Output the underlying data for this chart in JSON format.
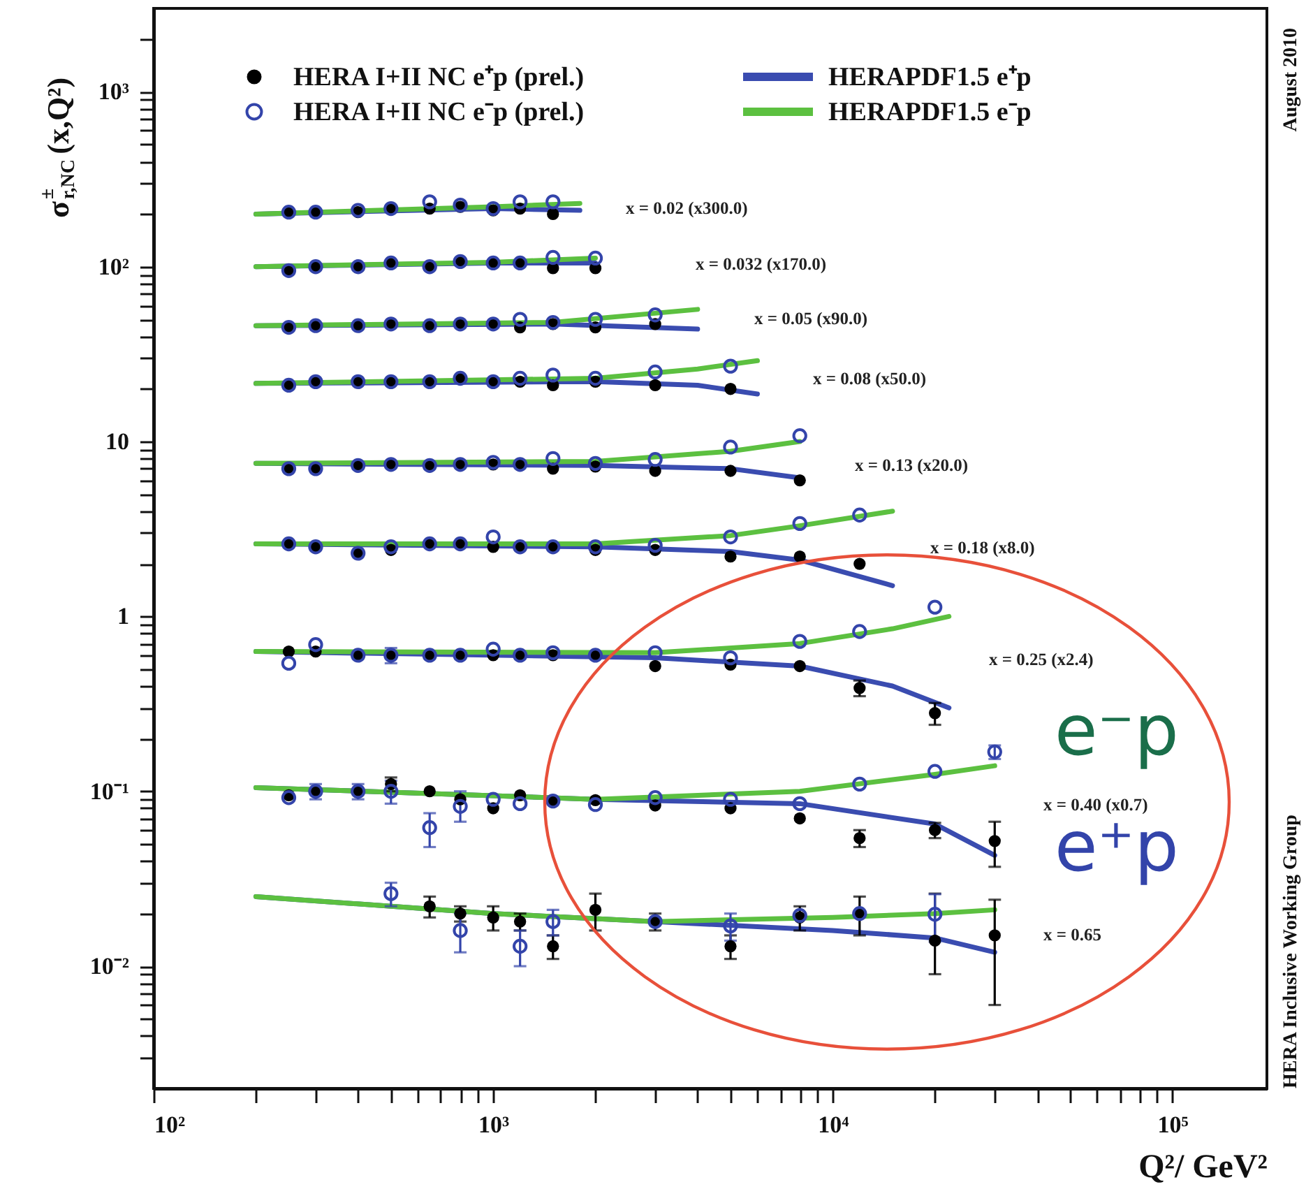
{
  "chart_data": {
    "type": "scatter",
    "xlabel": "Q²/ GeV²",
    "ylabel": "σ$^{±}$$_{r,NC}$(x,Q²)",
    "log": "xy",
    "grid": false,
    "legend": "top left",
    "xlim": [
      100,
      190000
    ],
    "ylim": [
      0.002,
      3000
    ],
    "xticks": [
      {
        "value": 100,
        "label": "10²"
      },
      {
        "value": 1000,
        "label": "10³"
      },
      {
        "value": 10000,
        "label": "10⁴"
      },
      {
        "value": 100000,
        "label": "10⁵"
      },
      {
        "value": 200,
        "label": null
      },
      {
        "value": 300,
        "label": null
      },
      {
        "value": 400,
        "label": null
      },
      {
        "value": 500,
        "label": null
      },
      {
        "value": 600,
        "label": null
      },
      {
        "value": 700,
        "label": null
      },
      {
        "value": 800,
        "label": null
      },
      {
        "value": 900,
        "label": null
      },
      {
        "value": 2000,
        "label": null
      },
      {
        "value": 3000,
        "label": null
      },
      {
        "value": 4000,
        "label": null
      },
      {
        "value": 5000,
        "label": null
      },
      {
        "value": 6000,
        "label": null
      },
      {
        "value": 7000,
        "label": null
      },
      {
        "value": 8000,
        "label": null
      },
      {
        "value": 9000,
        "label": null
      },
      {
        "value": 20000,
        "label": null
      },
      {
        "value": 30000,
        "label": null
      },
      {
        "value": 40000,
        "label": null
      },
      {
        "value": 50000,
        "label": null
      },
      {
        "value": 60000,
        "label": null
      },
      {
        "value": 70000,
        "label": null
      },
      {
        "value": 80000,
        "label": null
      },
      {
        "value": 90000,
        "label": null
      }
    ],
    "yticks": [
      {
        "value": 0.01,
        "label": "10⁻²"
      },
      {
        "value": 0.1,
        "label": "10⁻¹"
      },
      1,
      10,
      {
        "value": 100,
        "label": "10²"
      },
      {
        "value": 1000,
        "label": "10³"
      },
      {
        "value": 0.003,
        "label": null
      },
      {
        "value": 0.004,
        "label": null
      },
      {
        "value": 0.005,
        "label": null
      },
      {
        "value": 0.006,
        "label": null
      },
      {
        "value": 0.007,
        "label": null
      },
      {
        "value": 0.008,
        "label": null
      },
      {
        "value": 0.009,
        "label": null
      },
      {
        "value": 0.02,
        "label": null
      },
      {
        "value": 0.03,
        "label": null
      },
      {
        "value": 0.04,
        "label": null
      },
      {
        "value": 0.05,
        "label": null
      },
      {
        "value": 0.06,
        "label": null
      },
      {
        "value": 0.07,
        "label": null
      },
      {
        "value": 0.08,
        "label": null
      },
      {
        "value": 0.09,
        "label": null
      },
      {
        "value": 0.2,
        "label": null
      },
      {
        "value": 0.3,
        "label": null
      },
      {
        "value": 0.4,
        "label": null
      },
      {
        "value": 0.5,
        "label": null
      },
      {
        "value": 0.6,
        "label": null
      },
      {
        "value": 0.7,
        "label": null
      },
      {
        "value": 0.8,
        "label": null
      },
      {
        "value": 0.9,
        "label": null
      },
      {
        "value": 2,
        "label": null
      },
      {
        "value": 3,
        "label": null
      },
      {
        "value": 4,
        "label": null
      },
      {
        "value": 5,
        "label": null
      },
      {
        "value": 6,
        "label": null
      },
      {
        "value": 7,
        "label": null
      },
      {
        "value": 8,
        "label": null
      },
      {
        "value": 9,
        "label": null
      },
      {
        "value": 20,
        "label": null
      },
      {
        "value": 30,
        "label": null
      },
      {
        "value": 40,
        "label": null
      },
      {
        "value": 50,
        "label": null
      },
      {
        "value": 60,
        "label": null
      },
      {
        "value": 70,
        "label": null
      },
      {
        "value": 80,
        "label": null
      },
      {
        "value": 90,
        "label": null
      },
      {
        "value": 200,
        "label": null
      },
      {
        "value": 300,
        "label": null
      },
      {
        "value": 400,
        "label": null
      },
      {
        "value": 500,
        "label": null
      },
      {
        "value": 600,
        "label": null
      },
      {
        "value": 700,
        "label": null
      },
      {
        "value": 800,
        "label": null
      },
      {
        "value": 900,
        "label": null
      },
      {
        "value": 2000,
        "label": null
      }
    ],
    "series": [
      {
        "name": "HERAPDF1.5  e⁺p",
        "type": "line",
        "marker": "none",
        "color": "#3a4cb0",
        "x": [
          200,
          1000,
          1800
        ],
        "values": [
          200,
          215,
          210
        ]
      },
      {
        "type": "line",
        "marker": "none",
        "color": "#3a4cb0",
        "x": [
          200,
          1000,
          2000
        ],
        "values": [
          100,
          105,
          105
        ]
      },
      {
        "type": "line",
        "marker": "none",
        "color": "#3a4cb0",
        "x": [
          200,
          1500,
          4000
        ],
        "values": [
          46,
          47,
          44
        ]
      },
      {
        "type": "line",
        "marker": "none",
        "color": "#3a4cb0",
        "x": [
          200,
          2000,
          4000,
          6000
        ],
        "values": [
          21.5,
          22,
          21,
          18.7
        ]
      },
      {
        "type": "line",
        "marker": "none",
        "color": "#3a4cb0",
        "x": [
          200,
          2000,
          5000,
          8000
        ],
        "values": [
          7.5,
          7.3,
          7.0,
          6.2
        ]
      },
      {
        "type": "line",
        "marker": "none",
        "color": "#3a4cb0",
        "x": [
          200,
          2000,
          5000,
          8000,
          15000
        ],
        "values": [
          2.6,
          2.5,
          2.35,
          2.1,
          1.5
        ]
      },
      {
        "type": "line",
        "marker": "none",
        "color": "#3a4cb0",
        "x": [
          200,
          3000,
          8000,
          15000,
          22000
        ],
        "values": [
          0.63,
          0.58,
          0.52,
          0.4,
          0.3
        ]
      },
      {
        "type": "line",
        "marker": "none",
        "color": "#3a4cb0",
        "x": [
          200,
          2000,
          8000,
          20000,
          30000
        ],
        "values": [
          0.105,
          0.09,
          0.085,
          0.065,
          0.043
        ]
      },
      {
        "type": "line",
        "marker": "none",
        "color": "#3a4cb0",
        "x": [
          200,
          1000,
          3000,
          10000,
          20000,
          30000
        ],
        "values": [
          0.025,
          0.02,
          0.018,
          0.016,
          0.0145,
          0.012
        ]
      },
      {
        "name": "HERAPDF1.5  e⁻p",
        "type": "line",
        "marker": "none",
        "color": "#5cc040",
        "x": [
          200,
          1000,
          1800
        ],
        "values": [
          200,
          220,
          230
        ]
      },
      {
        "type": "line",
        "marker": "none",
        "color": "#5cc040",
        "x": [
          200,
          1000,
          2000
        ],
        "values": [
          100,
          106,
          112
        ]
      },
      {
        "type": "line",
        "marker": "none",
        "color": "#5cc040",
        "x": [
          200,
          1500,
          4000
        ],
        "values": [
          46,
          48,
          57
        ]
      },
      {
        "type": "line",
        "marker": "none",
        "color": "#5cc040",
        "x": [
          200,
          2000,
          4000,
          6000
        ],
        "values": [
          21.5,
          23,
          26,
          29
        ]
      },
      {
        "type": "line",
        "marker": "none",
        "color": "#5cc040",
        "x": [
          200,
          2000,
          5000,
          8000
        ],
        "values": [
          7.5,
          7.7,
          8.8,
          10
        ]
      },
      {
        "type": "line",
        "marker": "none",
        "color": "#5cc040",
        "x": [
          200,
          2000,
          5000,
          8000,
          15000
        ],
        "values": [
          2.6,
          2.6,
          2.9,
          3.3,
          4.0
        ]
      },
      {
        "type": "line",
        "marker": "none",
        "color": "#5cc040",
        "x": [
          200,
          3000,
          8000,
          15000,
          22000
        ],
        "values": [
          0.63,
          0.62,
          0.7,
          0.85,
          1.0
        ]
      },
      {
        "type": "line",
        "marker": "none",
        "color": "#5cc040",
        "x": [
          200,
          2000,
          8000,
          20000,
          30000
        ],
        "values": [
          0.105,
          0.09,
          0.1,
          0.125,
          0.14
        ]
      },
      {
        "type": "line",
        "marker": "none",
        "color": "#5cc040",
        "x": [
          200,
          1000,
          3000,
          10000,
          20000,
          30000
        ],
        "values": [
          0.025,
          0.02,
          0.018,
          0.019,
          0.02,
          0.021
        ]
      },
      {
        "name": "HERA I+II NC e⁺p (prel.)",
        "marker": "circle",
        "color": "#000000",
        "x": [
          250,
          300,
          400,
          500,
          650,
          800,
          1000,
          1200,
          1500,
          250,
          300,
          400,
          500,
          650,
          800,
          1000,
          1200,
          1500,
          2000,
          250,
          300,
          400,
          500,
          650,
          800,
          1000,
          1200,
          1500,
          2000,
          3000,
          250,
          300,
          400,
          500,
          650,
          800,
          1000,
          1200,
          1500,
          2000,
          3000,
          5000,
          250,
          300,
          400,
          500,
          650,
          800,
          1000,
          1200,
          1500,
          2000,
          3000,
          5000,
          8000,
          250,
          300,
          400,
          500,
          650,
          800,
          1000,
          1200,
          1500,
          2000,
          3000,
          5000,
          8000,
          12000,
          250,
          300,
          400,
          500,
          650,
          800,
          1000,
          1200,
          1500,
          2000,
          3000,
          5000,
          8000,
          12000,
          20000,
          250,
          300,
          400,
          500,
          650,
          800,
          1000,
          1200,
          1500,
          2000,
          3000,
          5000,
          8000,
          12000,
          20000,
          30000,
          650,
          800,
          1000,
          1200,
          1500,
          2000,
          3000,
          5000,
          8000,
          12000,
          20000,
          30000
        ],
        "values": [
          205,
          205,
          205,
          215,
          215,
          220,
          210,
          215,
          200,
          95,
          100,
          100,
          105,
          100,
          107,
          105,
          105,
          98,
          98,
          45,
          46,
          46,
          47,
          46,
          47,
          47,
          45,
          47,
          45,
          47,
          21,
          22,
          22,
          22,
          22,
          23,
          22,
          22,
          21,
          22,
          21,
          20,
          7.0,
          7.0,
          7.3,
          7.4,
          7.3,
          7.4,
          7.4,
          7.4,
          7.0,
          7.2,
          6.8,
          6.8,
          6.0,
          2.6,
          2.5,
          2.3,
          2.4,
          2.6,
          2.6,
          2.5,
          2.5,
          2.5,
          2.4,
          2.4,
          2.2,
          2.2,
          2.0,
          0.63,
          0.63,
          0.6,
          0.6,
          0.6,
          0.6,
          0.6,
          0.6,
          0.6,
          0.6,
          0.52,
          0.53,
          0.52,
          0.39,
          0.28,
          0.095,
          0.1,
          0.1,
          0.11,
          0.1,
          0.09,
          0.08,
          0.095,
          0.088,
          0.089,
          0.083,
          0.08,
          0.07,
          0.054,
          0.06,
          0.052,
          0.022,
          0.02,
          0.019,
          0.018,
          0.013,
          0.021,
          0.018,
          0.013,
          0.019,
          0.02,
          0.014,
          0.015
        ],
        "errors": [
          null,
          null,
          null,
          null,
          null,
          null,
          null,
          null,
          null,
          null,
          null,
          null,
          null,
          null,
          null,
          null,
          null,
          null,
          null,
          null,
          null,
          null,
          null,
          null,
          null,
          null,
          null,
          null,
          null,
          null,
          null,
          null,
          null,
          null,
          null,
          null,
          null,
          null,
          null,
          null,
          null,
          null,
          null,
          null,
          null,
          null,
          null,
          null,
          null,
          null,
          null,
          null,
          null,
          null,
          null,
          null,
          null,
          null,
          null,
          null,
          null,
          null,
          null,
          null,
          null,
          null,
          null,
          null,
          null,
          null,
          null,
          null,
          null,
          null,
          null,
          null,
          null,
          null,
          null,
          null,
          null,
          null,
          0.04,
          0.04,
          null,
          null,
          null,
          0.01,
          null,
          null,
          null,
          null,
          null,
          null,
          null,
          null,
          null,
          0.006,
          0.006,
          0.015,
          0.003,
          0.002,
          0.003,
          0.002,
          0.002,
          0.005,
          0.002,
          0.002,
          0.003,
          0.005,
          [
            0.009,
            0.026
          ],
          [
            0.006,
            0.024
          ]
        ]
      },
      {
        "name": "HERA I+II NC e⁻p (prel.)",
        "marker": "circle",
        "color": "#3344aa",
        "x": [
          250,
          300,
          400,
          500,
          650,
          800,
          1000,
          1200,
          1500,
          250,
          300,
          400,
          500,
          650,
          800,
          1000,
          1200,
          1500,
          2000,
          250,
          300,
          400,
          500,
          650,
          800,
          1000,
          1200,
          1500,
          2000,
          3000,
          250,
          300,
          400,
          500,
          650,
          800,
          1000,
          1200,
          1500,
          2000,
          3000,
          5000,
          250,
          300,
          400,
          500,
          650,
          800,
          1000,
          1200,
          1500,
          2000,
          3000,
          5000,
          8000,
          250,
          300,
          400,
          500,
          650,
          800,
          1000,
          1200,
          1500,
          2000,
          3000,
          5000,
          8000,
          12000,
          250,
          300,
          400,
          500,
          650,
          800,
          1000,
          1200,
          1500,
          2000,
          3000,
          5000,
          8000,
          12000,
          20000,
          250,
          300,
          400,
          500,
          650,
          800,
          1000,
          1200,
          1500,
          2000,
          3000,
          5000,
          8000,
          12000,
          20000,
          30000,
          500,
          800,
          1200,
          1500,
          3000,
          5000,
          8000,
          12000,
          20000
        ],
        "values": [
          205,
          205,
          210,
          215,
          235,
          225,
          215,
          235,
          235,
          95,
          100,
          100,
          105,
          100,
          107,
          105,
          105,
          113,
          112,
          45,
          46,
          46,
          47,
          46,
          47,
          47,
          50,
          48,
          50,
          53,
          21,
          22,
          22,
          22,
          22,
          23,
          22,
          23,
          24,
          23,
          25,
          27,
          7.0,
          7.0,
          7.3,
          7.4,
          7.3,
          7.4,
          7.6,
          7.4,
          8.0,
          7.5,
          7.9,
          9.3,
          10.8,
          2.6,
          2.5,
          2.3,
          2.5,
          2.6,
          2.6,
          2.85,
          2.5,
          2.5,
          2.5,
          2.55,
          2.85,
          3.4,
          3.8,
          0.54,
          0.69,
          0.6,
          0.6,
          0.6,
          0.6,
          0.65,
          0.6,
          0.62,
          0.6,
          0.62,
          0.58,
          0.72,
          0.82,
          1.13,
          0.092,
          0.1,
          0.1,
          0.1,
          0.062,
          0.082,
          0.09,
          0.085,
          0.088,
          0.084,
          0.092,
          0.09,
          0.085,
          0.11,
          0.13,
          0.168,
          0.026,
          0.016,
          0.013,
          0.018,
          0.018,
          0.017,
          0.0195,
          0.02,
          0.0198
        ],
        "errors": [
          null,
          null,
          null,
          null,
          null,
          null,
          null,
          null,
          null,
          null,
          null,
          null,
          null,
          null,
          null,
          null,
          null,
          null,
          null,
          null,
          null,
          null,
          null,
          null,
          null,
          null,
          null,
          null,
          null,
          null,
          null,
          null,
          null,
          null,
          null,
          null,
          null,
          null,
          null,
          null,
          null,
          null,
          null,
          null,
          null,
          null,
          null,
          null,
          null,
          null,
          null,
          null,
          null,
          null,
          null,
          null,
          null,
          null,
          null,
          null,
          null,
          null,
          null,
          null,
          null,
          null,
          null,
          null,
          null,
          null,
          null,
          null,
          0.06,
          null,
          null,
          null,
          null,
          null,
          null,
          null,
          null,
          null,
          null,
          null,
          null,
          0.01,
          0.01,
          0.015,
          [
            0.048,
            0.075
          ],
          [
            0.067,
            0.1
          ],
          null,
          null,
          null,
          null,
          null,
          null,
          null,
          null,
          null,
          0.015,
          0.004,
          0.004,
          0.003,
          0.003,
          null,
          0.003,
          null,
          null,
          0.006
        ]
      }
    ],
    "annotations": [
      "August 2010",
      "HERA Inclusive Working Group",
      "x = 0.02   (x300.0)",
      "x = 0.032   (x170.0)",
      "x = 0.05   (x90.0)",
      "x = 0.08   (x50.0)",
      "x = 0.13   (x20.0)",
      "x = 0.18   (x8.0)",
      "x = 0.25   (x2.4)",
      "x = 0.40   (x0.7)",
      "x = 0.65",
      "e⁻p",
      "e⁺p"
    ]
  }
}
